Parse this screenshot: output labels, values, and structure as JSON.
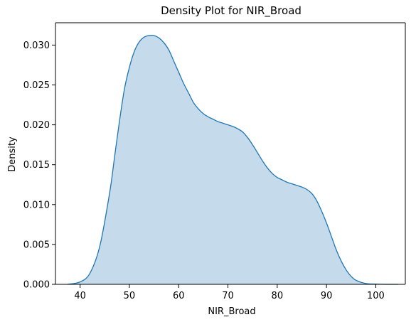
{
  "chart_data": {
    "type": "area",
    "title": "Density Plot for NIR_Broad",
    "xlabel": "NIR_Broad",
    "ylabel": "Density",
    "xlim": [
      35,
      106
    ],
    "ylim": [
      0,
      0.0328
    ],
    "x_ticks": [
      40,
      50,
      60,
      70,
      80,
      90,
      100
    ],
    "y_ticks": [
      0.0,
      0.005,
      0.01,
      0.015,
      0.02,
      0.025,
      0.03
    ],
    "x_tick_labels": [
      "40",
      "50",
      "60",
      "70",
      "80",
      "90",
      "100"
    ],
    "y_tick_labels": [
      "0.000",
      "0.005",
      "0.010",
      "0.015",
      "0.020",
      "0.025",
      "0.030"
    ],
    "grid": false,
    "legend": "none",
    "colors": {
      "line": "#1f77b4",
      "fill": "#c5dbec",
      "axis": "#000000"
    },
    "series": [
      {
        "x": [
          37.5,
          40,
          42,
          44,
          46,
          47,
          48,
          49,
          50,
          51,
          52,
          53,
          54,
          55,
          56,
          57,
          58,
          59,
          60,
          61,
          62,
          63,
          64,
          65,
          66,
          67,
          68,
          69,
          70,
          71,
          72,
          73,
          74,
          75,
          76,
          77,
          78,
          79,
          80,
          81,
          82,
          83,
          84,
          85,
          86,
          87,
          88,
          89,
          90,
          91,
          92,
          93,
          94,
          95,
          96,
          98,
          100,
          102,
          104.5
        ],
        "y": [
          0.0,
          0.0003,
          0.0014,
          0.0048,
          0.0115,
          0.016,
          0.0205,
          0.0245,
          0.0272,
          0.0292,
          0.0304,
          0.031,
          0.0312,
          0.0312,
          0.0309,
          0.0303,
          0.0294,
          0.028,
          0.0266,
          0.0252,
          0.024,
          0.0228,
          0.022,
          0.0214,
          0.021,
          0.0207,
          0.0204,
          0.0202,
          0.02,
          0.0198,
          0.0195,
          0.0191,
          0.0184,
          0.0175,
          0.0165,
          0.0155,
          0.0146,
          0.0139,
          0.0134,
          0.0131,
          0.0128,
          0.0126,
          0.0124,
          0.0122,
          0.0119,
          0.0114,
          0.0105,
          0.0092,
          0.0077,
          0.006,
          0.0043,
          0.0029,
          0.0018,
          0.001,
          0.0005,
          0.0001,
          3e-05,
          0.0,
          0.0
        ]
      }
    ]
  }
}
